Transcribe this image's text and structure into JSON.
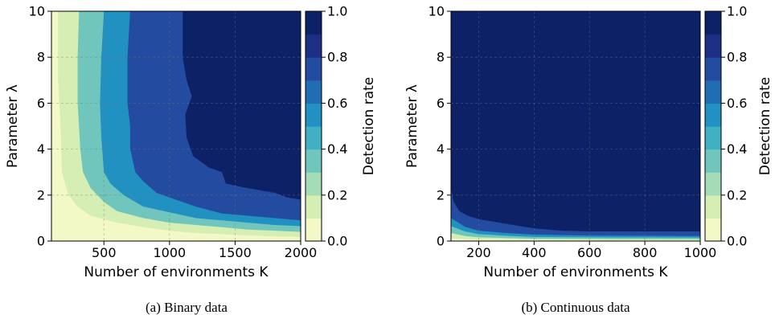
{
  "colorscale": {
    "levels": [
      0.0,
      0.1,
      0.2,
      0.3,
      0.4,
      0.5,
      0.6,
      0.7,
      0.8,
      0.9,
      1.0
    ],
    "band_colors": [
      "#f3f9c6",
      "#d4eeb3",
      "#a6dbb7",
      "#70c5bc",
      "#41b0c3",
      "#2091c0",
      "#216db2",
      "#234b9f",
      "#1d2f84",
      "#0c2166"
    ]
  },
  "chart_data": [
    {
      "type": "heatmap",
      "subtype": "filled-contour",
      "caption": "(a) Binary data",
      "xlabel": "Number of environments K",
      "ylabel": "Parameter λ",
      "xlim": [
        100,
        2000
      ],
      "ylim": [
        0,
        10
      ],
      "xticks": [
        "500",
        "1000",
        "1500",
        "2000"
      ],
      "yticks": [
        "0",
        "2",
        "4",
        "6",
        "8",
        "10"
      ],
      "grid": true,
      "colorbar": {
        "label": "Detection rate",
        "ticks": [
          "0.0",
          "0.2",
          "0.4",
          "0.6",
          "0.8",
          "1.0"
        ],
        "range": [
          0,
          1
        ]
      },
      "contour_levels": [
        0.1,
        0.3,
        0.5,
        0.7,
        0.9
      ],
      "boundaries": [
        {
          "level": 0.1,
          "points": [
            [
              150,
              10
            ],
            [
              150,
              7
            ],
            [
              170,
              5
            ],
            [
              180,
              3
            ],
            [
              230,
              2
            ],
            [
              300,
              1.5
            ],
            [
              400,
              1.1
            ],
            [
              600,
              0.8
            ],
            [
              800,
              0.6
            ],
            [
              1000,
              0.45
            ],
            [
              1200,
              0.35
            ],
            [
              1400,
              0.3
            ],
            [
              1600,
              0.25
            ],
            [
              1800,
              0.2
            ],
            [
              2000,
              0.18
            ]
          ]
        },
        {
          "level": 0.3,
          "points": [
            [
              310,
              10
            ],
            [
              300,
              8
            ],
            [
              300,
              6
            ],
            [
              320,
              4
            ],
            [
              340,
              3
            ],
            [
              400,
              2.3
            ],
            [
              500,
              1.7
            ],
            [
              600,
              1.3
            ],
            [
              800,
              1
            ],
            [
              1000,
              0.8
            ],
            [
              1200,
              0.7
            ],
            [
              1400,
              0.6
            ],
            [
              1600,
              0.5
            ],
            [
              1800,
              0.45
            ],
            [
              2000,
              0.4
            ]
          ]
        },
        {
          "level": 0.5,
          "points": [
            [
              500,
              10
            ],
            [
              480,
              8
            ],
            [
              470,
              6
            ],
            [
              480,
              4.5
            ],
            [
              500,
              3
            ],
            [
              550,
              2.5
            ],
            [
              650,
              2
            ],
            [
              800,
              1.5
            ],
            [
              1000,
              1.25
            ],
            [
              1200,
              1
            ],
            [
              1400,
              0.9
            ],
            [
              1600,
              0.8
            ],
            [
              1800,
              0.7
            ],
            [
              2000,
              0.65
            ]
          ]
        },
        {
          "level": 0.7,
          "points": [
            [
              700,
              10
            ],
            [
              680,
              8
            ],
            [
              680,
              6
            ],
            [
              700,
              5
            ],
            [
              700,
              4
            ],
            [
              740,
              3
            ],
            [
              800,
              2.6
            ],
            [
              900,
              2.1
            ],
            [
              1000,
              1.9
            ],
            [
              1200,
              1.5
            ],
            [
              1400,
              1.2
            ],
            [
              1600,
              1.1
            ],
            [
              1800,
              1
            ],
            [
              2000,
              0.9
            ]
          ]
        },
        {
          "level": 0.9,
          "points": [
            [
              1100,
              10
            ],
            [
              1100,
              8
            ],
            [
              1130,
              7
            ],
            [
              1170,
              6.3
            ],
            [
              1120,
              5.5
            ],
            [
              1130,
              4.5
            ],
            [
              1180,
              3.7
            ],
            [
              1300,
              3.2
            ],
            [
              1400,
              3
            ],
            [
              1430,
              2.5
            ],
            [
              1600,
              2.3
            ],
            [
              1700,
              2.2
            ],
            [
              1800,
              2.1
            ],
            [
              1900,
              1.9
            ],
            [
              2000,
              1.8
            ]
          ]
        }
      ]
    },
    {
      "type": "heatmap",
      "subtype": "filled-contour",
      "caption": "(b) Continuous data",
      "xlabel": "Number of environments K",
      "ylabel": "Parameter λ",
      "xlim": [
        100,
        1000
      ],
      "ylim": [
        0,
        10
      ],
      "xticks": [
        "200",
        "400",
        "600",
        "800",
        "1000"
      ],
      "yticks": [
        "0",
        "2",
        "4",
        "6",
        "8",
        "10"
      ],
      "grid": true,
      "colorbar": {
        "label": "Detection rate",
        "ticks": [
          "0.0",
          "0.2",
          "0.4",
          "0.6",
          "0.8",
          "1.0"
        ],
        "range": [
          0,
          1
        ]
      },
      "contour_levels": [
        0.1,
        0.3,
        0.5,
        0.7,
        0.9
      ],
      "boundaries": [
        {
          "level": 0.1,
          "points": [
            [
              100,
              0.12
            ],
            [
              150,
              0.08
            ],
            [
              200,
              0.06
            ],
            [
              400,
              0.04
            ],
            [
              600,
              0.03
            ],
            [
              1000,
              0.03
            ]
          ]
        },
        {
          "level": 0.3,
          "points": [
            [
              100,
              0.35
            ],
            [
              150,
              0.22
            ],
            [
              200,
              0.16
            ],
            [
              300,
              0.13
            ],
            [
              400,
              0.1
            ],
            [
              600,
              0.09
            ],
            [
              1000,
              0.08
            ]
          ]
        },
        {
          "level": 0.5,
          "points": [
            [
              100,
              0.65
            ],
            [
              150,
              0.42
            ],
            [
              200,
              0.3
            ],
            [
              300,
              0.23
            ],
            [
              400,
              0.18
            ],
            [
              600,
              0.16
            ],
            [
              1000,
              0.15
            ]
          ]
        },
        {
          "level": 0.7,
          "points": [
            [
              100,
              1.0
            ],
            [
              150,
              0.62
            ],
            [
              200,
              0.45
            ],
            [
              300,
              0.35
            ],
            [
              400,
              0.28
            ],
            [
              600,
              0.24
            ],
            [
              1000,
              0.22
            ]
          ]
        },
        {
          "level": 0.9,
          "points": [
            [
              100,
              2.3
            ],
            [
              110,
              1.7
            ],
            [
              130,
              1.3
            ],
            [
              160,
              1.1
            ],
            [
              200,
              0.95
            ],
            [
              300,
              0.75
            ],
            [
              400,
              0.55
            ],
            [
              500,
              0.45
            ],
            [
              600,
              0.42
            ],
            [
              800,
              0.42
            ],
            [
              1000,
              0.42
            ]
          ]
        }
      ]
    }
  ]
}
